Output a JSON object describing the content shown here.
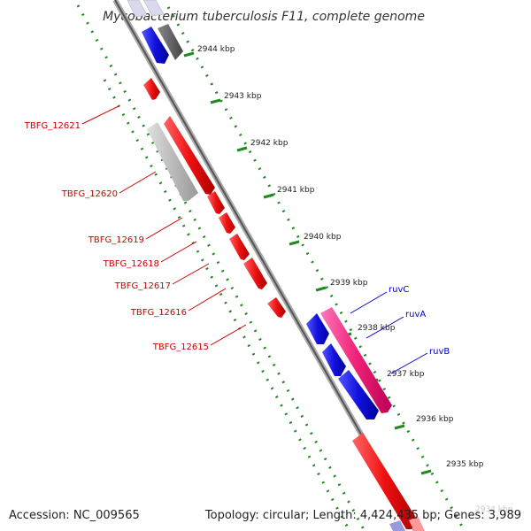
{
  "title": "Mycobacterium tuberculosis F11, complete genome",
  "accession": "Accession: NC_009565",
  "summary": "Topology: circular; Length: 4,424,435 bp; Genes: 3,989",
  "kbp_ticks": [
    "2944 kbp",
    "2943 kbp",
    "2942 kbp",
    "2941 kbp",
    "2940 kbp",
    "2939 kbp",
    "2938 kbp",
    "2937 kbp",
    "2936 kbp",
    "2935 kbp"
  ],
  "faded_tick": "2934 kbp",
  "genes_left": [
    "TBFG_12621",
    "TBFG_12620",
    "TBFG_12619",
    "TBFG_12618",
    "TBFG_12617",
    "TBFG_12616",
    "TBFG_12615"
  ],
  "genes_right": [
    "ruvC",
    "ruvA",
    "ruvB"
  ],
  "colors": {
    "forward_strand": "#ee1111",
    "reverse_strand": "#1111dd",
    "rna_or_pseudo": "#bbbbbb",
    "highlight": "#ee2277",
    "backbone": "#777777",
    "dotted_track": "#228822"
  }
}
